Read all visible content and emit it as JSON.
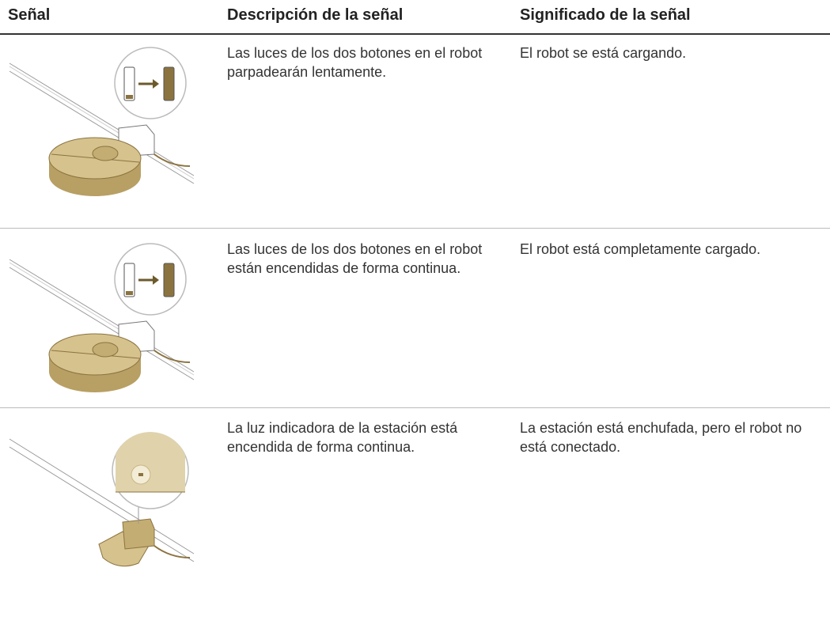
{
  "table": {
    "headers": [
      "Señal",
      "Descripción de la señal",
      "Significado de la señal"
    ],
    "rows": [
      {
        "description": "Las luces de los dos botones en el robot parpadearán lentamente.",
        "meaning": "El robot se está cargando."
      },
      {
        "description": "Las luces de los dos botones en el robot están encendidas de forma continua.",
        "meaning": "El robot está completamente cargado."
      },
      {
        "description": "La luz indicadora de la estación está encendida de forma continua.",
        "meaning": "La estación está enchufada, pero el robot no está conectado."
      }
    ]
  }
}
